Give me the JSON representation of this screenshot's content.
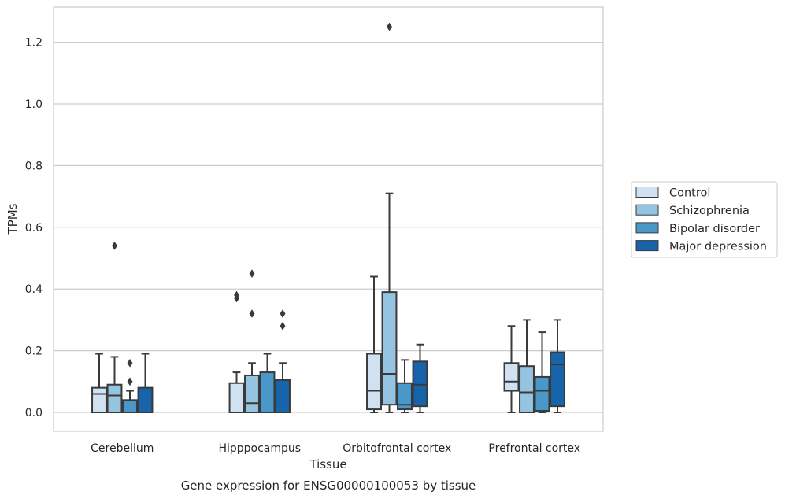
{
  "caption": "Gene expression for ENSG00000100053 by tissue",
  "chart_data": {
    "type": "box",
    "xlabel": "Tissue",
    "ylabel": "TPMs",
    "ylim": [
      -0.06,
      1.32
    ],
    "yticks": [
      0.0,
      0.2,
      0.4,
      0.6,
      0.8,
      1.0,
      1.2
    ],
    "ytick_labels": [
      "0.0",
      "0.2",
      "0.4",
      "0.6",
      "0.8",
      "1.0",
      "1.2"
    ],
    "grid": "horizontal",
    "legend_position": "right",
    "categories": [
      "Cerebellum",
      "Hipppocampus",
      "Orbitofrontal cortex",
      "Prefrontal cortex"
    ],
    "series": [
      {
        "name": "Control",
        "color": "#d0e1f2",
        "boxes": [
          {
            "whislo": 0.0,
            "q1": 0.0,
            "med": 0.06,
            "q3": 0.08,
            "whishi": 0.19,
            "fliers": []
          },
          {
            "whislo": 0.0,
            "q1": 0.0,
            "med": 0.0,
            "q3": 0.095,
            "whishi": 0.13,
            "fliers": [
              0.37,
              0.38
            ]
          },
          {
            "whislo": 0.0,
            "q1": 0.01,
            "med": 0.07,
            "q3": 0.19,
            "whishi": 0.44,
            "fliers": []
          },
          {
            "whislo": 0.0,
            "q1": 0.07,
            "med": 0.1,
            "q3": 0.16,
            "whishi": 0.28,
            "fliers": []
          }
        ]
      },
      {
        "name": "Schizophrenia",
        "color": "#94c4df",
        "boxes": [
          {
            "whislo": 0.0,
            "q1": 0.0,
            "med": 0.055,
            "q3": 0.09,
            "whishi": 0.18,
            "fliers": [
              0.54
            ]
          },
          {
            "whislo": 0.0,
            "q1": 0.0,
            "med": 0.03,
            "q3": 0.12,
            "whishi": 0.16,
            "fliers": [
              0.32,
              0.45
            ]
          },
          {
            "whislo": 0.0,
            "q1": 0.025,
            "med": 0.125,
            "q3": 0.39,
            "whishi": 0.71,
            "fliers": [
              1.25
            ]
          },
          {
            "whislo": 0.0,
            "q1": 0.0,
            "med": 0.065,
            "q3": 0.15,
            "whishi": 0.3,
            "fliers": []
          }
        ]
      },
      {
        "name": "Bipolar disorder",
        "color": "#4a98c9",
        "boxes": [
          {
            "whislo": 0.0,
            "q1": 0.0,
            "med": 0.0,
            "q3": 0.04,
            "whishi": 0.07,
            "fliers": [
              0.1,
              0.16
            ]
          },
          {
            "whislo": 0.0,
            "q1": 0.0,
            "med": 0.0,
            "q3": 0.13,
            "whishi": 0.19,
            "fliers": []
          },
          {
            "whislo": 0.0,
            "q1": 0.01,
            "med": 0.025,
            "q3": 0.095,
            "whishi": 0.17,
            "fliers": []
          },
          {
            "whislo": 0.0,
            "q1": 0.005,
            "med": 0.07,
            "q3": 0.115,
            "whishi": 0.26,
            "fliers": []
          }
        ]
      },
      {
        "name": "Major depression",
        "color": "#1764ab",
        "boxes": [
          {
            "whislo": 0.0,
            "q1": 0.0,
            "med": 0.0,
            "q3": 0.08,
            "whishi": 0.19,
            "fliers": []
          },
          {
            "whislo": 0.0,
            "q1": 0.0,
            "med": 0.0,
            "q3": 0.105,
            "whishi": 0.16,
            "fliers": [
              0.28,
              0.32
            ]
          },
          {
            "whislo": 0.0,
            "q1": 0.02,
            "med": 0.09,
            "q3": 0.165,
            "whishi": 0.22,
            "fliers": []
          },
          {
            "whislo": 0.0,
            "q1": 0.02,
            "med": 0.155,
            "q3": 0.195,
            "whishi": 0.3,
            "fliers": []
          }
        ]
      }
    ]
  }
}
